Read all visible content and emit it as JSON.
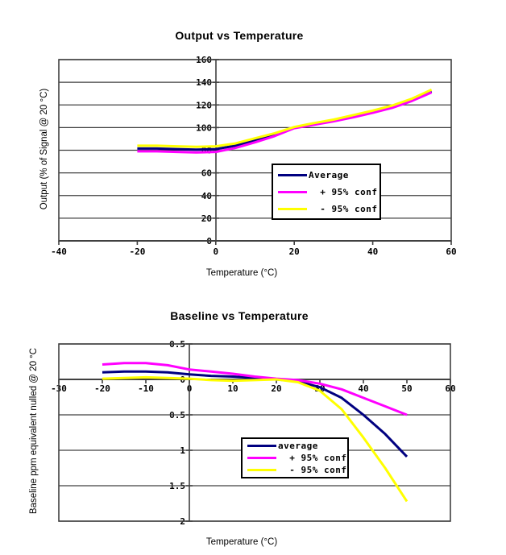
{
  "page": {
    "background": "#ffffff"
  },
  "style": {
    "grid_color": "#404040",
    "axis_color": "#404040",
    "text_color": "#000000"
  },
  "chart_data": [
    {
      "type": "line",
      "title": "Output vs Temperature",
      "xlabel": "Temperature (°C)",
      "ylabel": "Output (% of Signal @ 20 °C)",
      "xlim": [
        -40,
        60
      ],
      "ylim": [
        0,
        160
      ],
      "x_ticks": [
        -40,
        -20,
        0,
        20,
        40,
        60
      ],
      "y_ticks": [
        160,
        140,
        120,
        100,
        80,
        60,
        40,
        20,
        0
      ],
      "grid": "horizontal",
      "legend_position": "inside-lower-center",
      "legend_labels": [
        "Average",
        "  + 95% conf",
        "  - 95% conf"
      ],
      "x": [
        -20,
        -15,
        -10,
        -5,
        0,
        5,
        10,
        15,
        20,
        25,
        30,
        35,
        40,
        45,
        50,
        55
      ],
      "series": [
        {
          "name": "Average",
          "color": "#000080",
          "values": [
            81.5,
            81.5,
            81,
            80.5,
            81,
            84,
            89,
            93.5,
            100,
            103,
            106,
            110,
            114,
            118.5,
            124.5,
            132
          ]
        },
        {
          "name": "+ 95% conf",
          "color": "#FF00FF",
          "values": [
            79,
            79,
            78.5,
            78,
            78.5,
            82,
            87,
            92.5,
            99.5,
            102.5,
            105.5,
            109,
            113,
            117.5,
            123.5,
            131
          ]
        },
        {
          "name": "- 95% conf",
          "color": "#FFFF00",
          "values": [
            84,
            84,
            83.5,
            83,
            83.5,
            86,
            90.5,
            95,
            100.5,
            104,
            107,
            111,
            115,
            119.5,
            125.5,
            133.5
          ]
        }
      ]
    },
    {
      "type": "line",
      "title": "Baseline vs Temperature",
      "xlabel": "Temperature (°C)",
      "ylabel": "Baseline ppm equivalent nulled @ 20 °C",
      "xlim": [
        -30,
        60
      ],
      "ylim": [
        -2,
        0.5
      ],
      "x_ticks": [
        -30,
        -20,
        -10,
        0,
        10,
        20,
        30,
        40,
        50,
        60
      ],
      "y_ticks": [
        0.5,
        0,
        -0.5,
        -1,
        -1.5,
        -2
      ],
      "y_tick_labels": [
        "0.5",
        "0",
        "0.5",
        "1",
        "1.5",
        "2"
      ],
      "grid": "horizontal",
      "legend_position": "inside-lower-center",
      "legend_labels": [
        "average",
        "  + 95% conf",
        "  - 95% conf"
      ],
      "x": [
        -20,
        -15,
        -10,
        -5,
        0,
        5,
        10,
        15,
        20,
        25,
        30,
        35,
        40,
        45,
        50
      ],
      "series": [
        {
          "name": "average",
          "color": "#000080",
          "values": [
            0.1,
            0.11,
            0.11,
            0.1,
            0.07,
            0.05,
            0.04,
            0.02,
            0.0,
            -0.03,
            -0.11,
            -0.26,
            -0.5,
            -0.77,
            -1.09
          ]
        },
        {
          "name": "+ 95% conf",
          "color": "#FF00FF",
          "values": [
            0.21,
            0.23,
            0.23,
            0.2,
            0.14,
            0.11,
            0.08,
            0.04,
            0.01,
            -0.01,
            -0.06,
            -0.14,
            -0.26,
            -0.38,
            -0.5
          ]
        },
        {
          "name": "- 95% conf",
          "color": "#FFFF00",
          "values": [
            0.01,
            0.02,
            0.03,
            0.02,
            0.01,
            -0.01,
            -0.02,
            -0.01,
            0.0,
            -0.04,
            -0.16,
            -0.42,
            -0.82,
            -1.25,
            -1.72
          ]
        }
      ]
    }
  ]
}
